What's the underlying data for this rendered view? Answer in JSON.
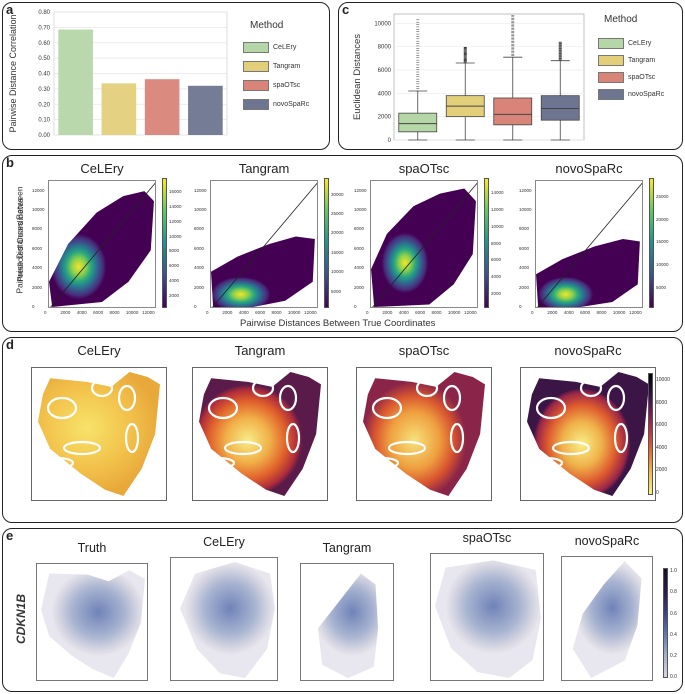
{
  "panel_labels": {
    "a": "a",
    "b": "b",
    "c": "c",
    "d": "d",
    "e": "e"
  },
  "colors": {
    "CeLEry": "#b5d6a7",
    "Tangram": "#e3cf7a",
    "spaOTsc": "#d98478",
    "novoSpaRc": "#6e7590"
  },
  "chart_data": [
    {
      "id": "a",
      "type": "bar",
      "categories": [
        "CeLEry",
        "Tangram",
        "spaOTsc",
        "novoSpaRc"
      ],
      "values": [
        0.686,
        0.336,
        0.363,
        0.32
      ],
      "ylabel": "Pairwise Distance Correlation",
      "ylim": [
        0,
        0.8
      ],
      "yticks": [
        "0.00",
        "0.10",
        "0.20",
        "0.30",
        "0.40",
        "0.50",
        "0.60",
        "0.70",
        "0.80"
      ],
      "legend_title": "Method",
      "legend": [
        "CeLEry",
        "Tangram",
        "spaOTsc",
        "novoSpaRc"
      ],
      "grid": true
    },
    {
      "id": "c",
      "type": "box",
      "categories": [
        "CeLEry",
        "Tangram",
        "spaOTsc",
        "novoSpaRc"
      ],
      "ylabel": "Euclidean Distances",
      "ylim": [
        0,
        10800
      ],
      "yticks": [
        "0",
        "2000",
        "4000",
        "6000",
        "8000",
        "10000"
      ],
      "boxes": [
        {
          "min": 0,
          "q1": 700,
          "median": 1400,
          "q3": 2300,
          "max": 4200,
          "outlier_max": 10300
        },
        {
          "min": 0,
          "q1": 2000,
          "median": 2900,
          "q3": 3800,
          "max": 6600,
          "outlier_max": 8000
        },
        {
          "min": 0,
          "q1": 1300,
          "median": 2200,
          "q3": 3600,
          "max": 7100,
          "outlier_max": 10800
        },
        {
          "min": 0,
          "q1": 1700,
          "median": 2700,
          "q3": 3800,
          "max": 6800,
          "outlier_max": 8400
        }
      ],
      "legend_title": "Method",
      "legend": [
        "CeLEry",
        "Tangram",
        "spaOTsc",
        "novoSpaRc"
      ]
    },
    {
      "id": "b",
      "type": "heatmap",
      "titles": [
        "CeLEry",
        "Tangram",
        "spaOTsc",
        "novoSpaRc"
      ],
      "xlabel": "Pairwise Distances Between True Coordinates",
      "ylabel_line1": "Pairwise Distances Between",
      "ylabel_line2": "Predicted Coordinates",
      "ticks": [
        "0",
        "2000",
        "4000",
        "6000",
        "8000",
        "10000",
        "12000"
      ],
      "colorbars": [
        [
          "2000",
          "4000",
          "6000",
          "8000",
          "10000",
          "12000",
          "14000",
          "16000"
        ],
        [
          "5000",
          "10000",
          "15000",
          "20000",
          "25000",
          "30000"
        ],
        [
          "2000",
          "4000",
          "6000",
          "8000",
          "10000",
          "12000",
          "14000"
        ],
        [
          "5000",
          "10000",
          "15000",
          "20000",
          "25000"
        ]
      ]
    },
    {
      "id": "d",
      "type": "spatial_map",
      "titles": [
        "CeLEry",
        "Tangram",
        "spaOTsc",
        "novoSpaRc"
      ],
      "colorbar": [
        "0",
        "2000",
        "4000",
        "6000",
        "8000",
        "10000"
      ]
    },
    {
      "id": "e",
      "type": "spatial_map",
      "row_label": "CDKN1B",
      "titles": [
        "Truth",
        "CeLEry",
        "Tangram",
        "spaOTsc",
        "novoSpaRc"
      ],
      "colorbar": [
        "0.0",
        "0.2",
        "0.4",
        "0.6",
        "0.8",
        "1.0"
      ]
    }
  ]
}
